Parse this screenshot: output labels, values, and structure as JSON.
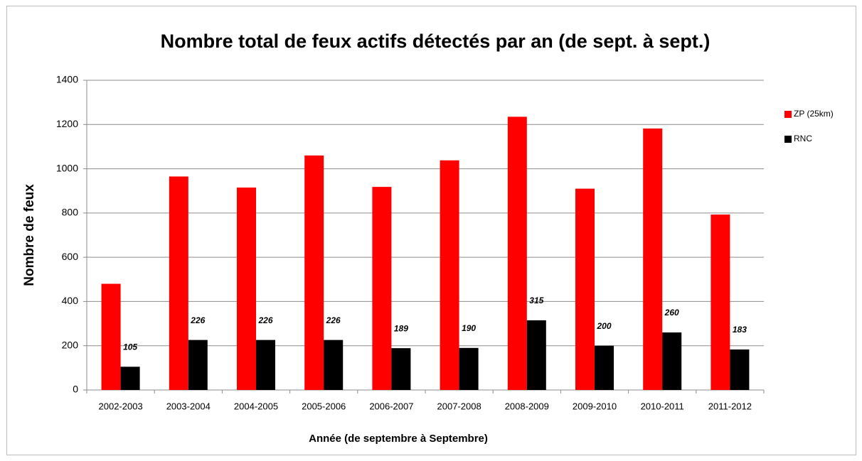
{
  "chart_data": {
    "type": "bar",
    "title": "Nombre total de feux actifs détectés par an (de sept. à sept.)",
    "x_label": "Année (de septembre à Septembre)",
    "y_label": "Nombre de feux",
    "categories": [
      "2002-2003",
      "2003-2004",
      "2004-2005",
      "2005-2006",
      "2006-2007",
      "2007-2008",
      "2008-2009",
      "2009-2010",
      "2010-2011",
      "2011-2012"
    ],
    "series": [
      {
        "name": "ZP (25km)",
        "color": "#ff0000",
        "values": [
          480,
          965,
          915,
          1060,
          918,
          1038,
          1235,
          910,
          1182,
          793
        ]
      },
      {
        "name": "RNC",
        "color": "#000000",
        "values": [
          105,
          226,
          226,
          226,
          189,
          190,
          315,
          200,
          260,
          183
        ],
        "data_labels": true
      }
    ],
    "ylim": [
      0,
      1400
    ],
    "yticks": [
      0,
      200,
      400,
      600,
      800,
      1000,
      1200,
      1400
    ],
    "grid": true,
    "legend": "right"
  }
}
